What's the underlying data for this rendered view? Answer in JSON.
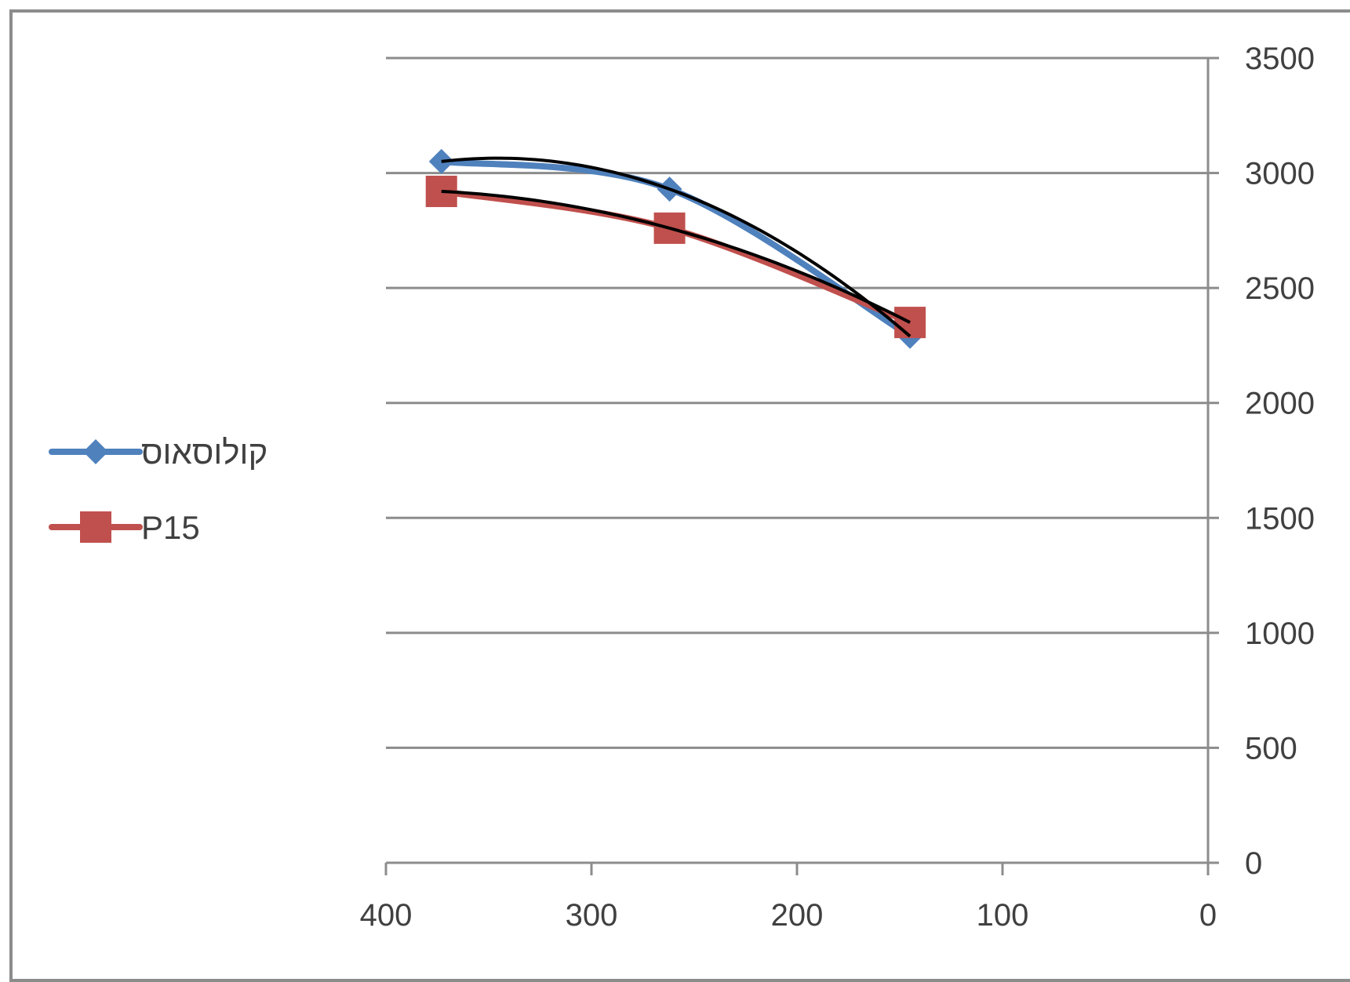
{
  "chart_data": {
    "type": "line",
    "title": "",
    "xlabel": "",
    "ylabel": "",
    "x_axis": {
      "min": 0,
      "max": 400,
      "reversed": true,
      "ticks": [
        400,
        300,
        200,
        100,
        0
      ]
    },
    "y_axis": {
      "min": 0,
      "max": 3500,
      "position": "right",
      "ticks": [
        0,
        500,
        1000,
        1500,
        2000,
        2500,
        3000,
        3500
      ]
    },
    "grid": {
      "horizontal": true,
      "vertical": false
    },
    "legend": {
      "position": "left"
    },
    "series": [
      {
        "name": "קולוסאוס",
        "marker": "diamond",
        "color": "#4f81bd",
        "points": [
          {
            "x": 373,
            "y": 3050
          },
          {
            "x": 262,
            "y": 2930
          },
          {
            "x": 145,
            "y": 2290
          }
        ]
      },
      {
        "name": "P15",
        "marker": "square",
        "color": "#c0504d",
        "points": [
          {
            "x": 373,
            "y": 2920
          },
          {
            "x": 262,
            "y": 2760
          },
          {
            "x": 145,
            "y": 2350
          }
        ]
      }
    ],
    "trendlines": {
      "type": "polynomial",
      "order": 2,
      "color": "#000000"
    }
  }
}
